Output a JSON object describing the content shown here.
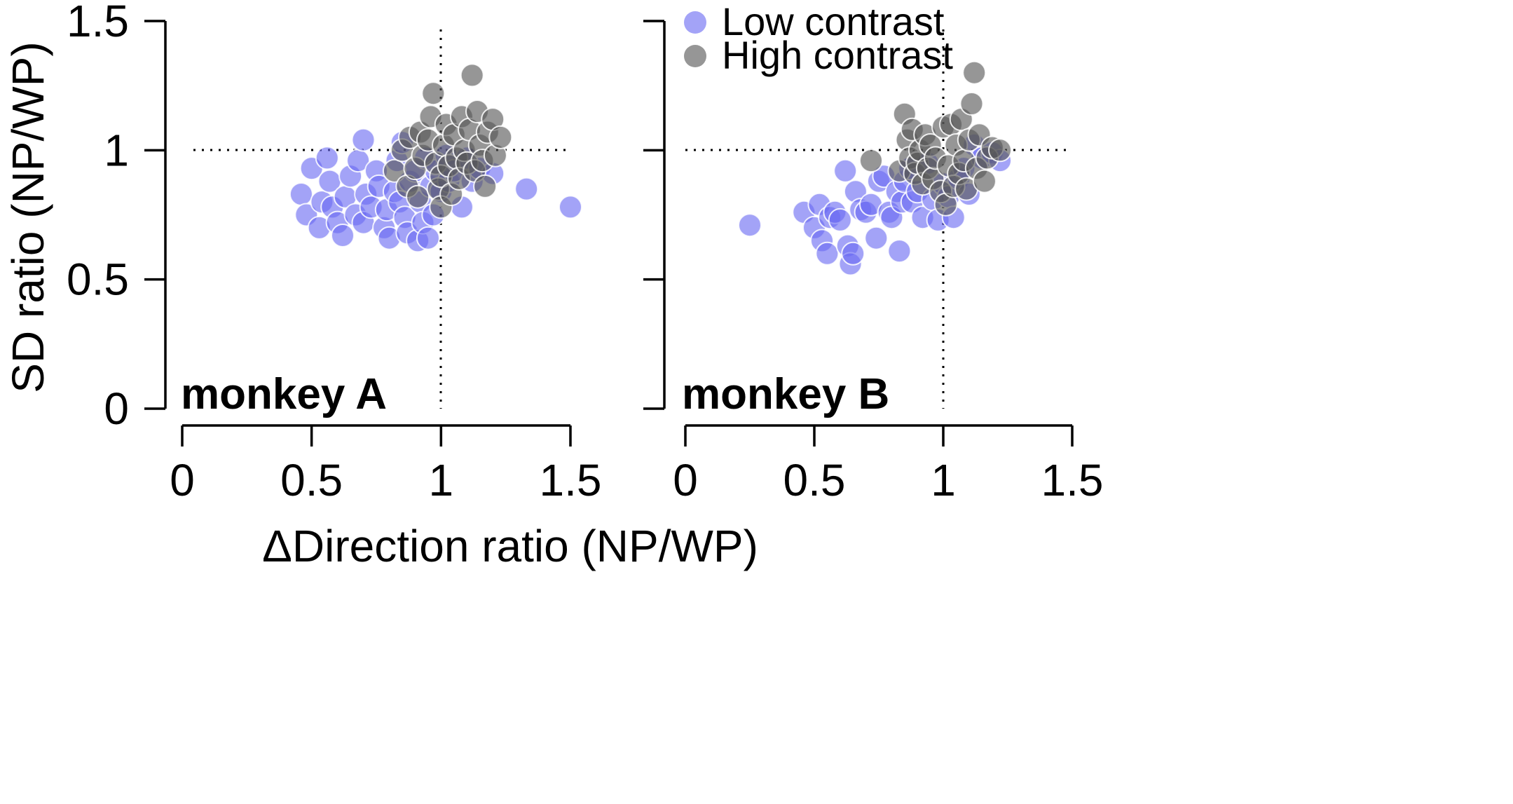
{
  "chart_data": {
    "type": "scatter",
    "xlabel": "ΔDirection ratio (NP/WP)",
    "ylabel": "SD ratio (NP/WP)",
    "xlim": [
      0,
      1.5
    ],
    "ylim": [
      0,
      1.5
    ],
    "xticks": [
      "0",
      "0.5",
      "1",
      "1.5"
    ],
    "yticks": [
      "0",
      "0.5",
      "1",
      "1.5"
    ],
    "reference_lines": {
      "x": 1,
      "y": 1
    },
    "legend": {
      "placement": "top of right panel",
      "entries": [
        {
          "label": "Low contrast",
          "color": "#6b6bf2"
        },
        {
          "label": "High contrast",
          "color": "#555555"
        }
      ]
    },
    "panels": [
      {
        "label": "monkey A",
        "series": [
          {
            "name": "Low contrast",
            "color": "#6b6bf2",
            "points": [
              [
                0.46,
                0.83
              ],
              [
                0.48,
                0.75
              ],
              [
                0.5,
                0.93
              ],
              [
                0.53,
                0.7
              ],
              [
                0.54,
                0.8
              ],
              [
                0.56,
                0.97
              ],
              [
                0.57,
                0.88
              ],
              [
                0.58,
                0.78
              ],
              [
                0.6,
                0.72
              ],
              [
                0.62,
                0.67
              ],
              [
                0.63,
                0.82
              ],
              [
                0.65,
                0.9
              ],
              [
                0.67,
                0.75
              ],
              [
                0.68,
                0.96
              ],
              [
                0.7,
                1.04
              ],
              [
                0.7,
                0.72
              ],
              [
                0.71,
                0.83
              ],
              [
                0.73,
                0.78
              ],
              [
                0.75,
                0.92
              ],
              [
                0.76,
                0.86
              ],
              [
                0.78,
                0.7
              ],
              [
                0.79,
                0.77
              ],
              [
                0.8,
                0.66
              ],
              [
                0.82,
                0.84
              ],
              [
                0.83,
                0.96
              ],
              [
                0.84,
                0.8
              ],
              [
                0.85,
                1.03
              ],
              [
                0.86,
                0.74
              ],
              [
                0.87,
                0.68
              ],
              [
                0.88,
                0.88
              ],
              [
                0.9,
                0.92
              ],
              [
                0.91,
                0.65
              ],
              [
                0.92,
                0.8
              ],
              [
                0.93,
                0.72
              ],
              [
                0.94,
                0.97
              ],
              [
                0.95,
                0.66
              ],
              [
                0.96,
                0.86
              ],
              [
                0.97,
                0.75
              ],
              [
                0.98,
                0.92
              ],
              [
                1.0,
                0.84
              ],
              [
                1.02,
                0.98
              ],
              [
                1.03,
                0.88
              ],
              [
                1.05,
                0.92
              ],
              [
                1.08,
                0.78
              ],
              [
                1.1,
                0.97
              ],
              [
                1.12,
                0.88
              ],
              [
                1.15,
                0.93
              ],
              [
                1.2,
                0.91
              ],
              [
                1.33,
                0.85
              ],
              [
                1.5,
                0.78
              ]
            ]
          },
          {
            "name": "High contrast",
            "color": "#555555",
            "points": [
              [
                0.82,
                0.92
              ],
              [
                0.85,
                1.0
              ],
              [
                0.87,
                0.86
              ],
              [
                0.88,
                1.05
              ],
              [
                0.9,
                0.93
              ],
              [
                0.91,
                0.82
              ],
              [
                0.92,
                1.07
              ],
              [
                0.93,
                0.98
              ],
              [
                0.95,
                1.04
              ],
              [
                0.96,
                1.13
              ],
              [
                0.97,
                1.22
              ],
              [
                0.98,
                0.95
              ],
              [
                0.99,
                0.85
              ],
              [
                1.0,
                0.78
              ],
              [
                1.0,
                0.9
              ],
              [
                1.01,
                1.02
              ],
              [
                1.02,
                1.1
              ],
              [
                1.03,
                0.94
              ],
              [
                1.04,
                0.83
              ],
              [
                1.05,
                1.06
              ],
              [
                1.06,
                0.97
              ],
              [
                1.07,
                0.89
              ],
              [
                1.08,
                1.13
              ],
              [
                1.09,
                1.0
              ],
              [
                1.1,
                0.95
              ],
              [
                1.11,
                1.08
              ],
              [
                1.12,
                1.29
              ],
              [
                1.13,
                0.92
              ],
              [
                1.14,
                1.15
              ],
              [
                1.15,
                1.02
              ],
              [
                1.16,
                0.96
              ],
              [
                1.17,
                0.86
              ],
              [
                1.18,
                1.07
              ],
              [
                1.2,
                1.12
              ],
              [
                1.21,
                0.98
              ],
              [
                1.23,
                1.05
              ]
            ]
          }
        ]
      },
      {
        "label": "monkey B",
        "series": [
          {
            "name": "Low contrast",
            "color": "#6b6bf2",
            "points": [
              [
                0.25,
                0.71
              ],
              [
                0.46,
                0.76
              ],
              [
                0.5,
                0.7
              ],
              [
                0.52,
                0.79
              ],
              [
                0.53,
                0.65
              ],
              [
                0.55,
                0.6
              ],
              [
                0.56,
                0.74
              ],
              [
                0.58,
                0.76
              ],
              [
                0.6,
                0.73
              ],
              [
                0.62,
                0.92
              ],
              [
                0.63,
                0.63
              ],
              [
                0.64,
                0.56
              ],
              [
                0.65,
                0.6
              ],
              [
                0.66,
                0.84
              ],
              [
                0.68,
                0.77
              ],
              [
                0.7,
                0.76
              ],
              [
                0.72,
                0.79
              ],
              [
                0.74,
                0.66
              ],
              [
                0.75,
                0.88
              ],
              [
                0.77,
                0.9
              ],
              [
                0.79,
                0.76
              ],
              [
                0.8,
                0.74
              ],
              [
                0.82,
                0.84
              ],
              [
                0.83,
                0.61
              ],
              [
                0.84,
                0.8
              ],
              [
                0.85,
                0.88
              ],
              [
                0.87,
                0.93
              ],
              [
                0.88,
                0.8
              ],
              [
                0.9,
                0.84
              ],
              [
                0.92,
                0.74
              ],
              [
                0.94,
                0.95
              ],
              [
                0.96,
                0.81
              ],
              [
                0.98,
                0.73
              ],
              [
                1.0,
                0.87
              ],
              [
                1.02,
                0.82
              ],
              [
                1.04,
                0.74
              ],
              [
                1.06,
                0.89
              ],
              [
                1.08,
                0.93
              ],
              [
                1.1,
                0.83
              ],
              [
                1.12,
                1.02
              ],
              [
                1.15,
                0.97
              ],
              [
                1.19,
                0.99
              ],
              [
                1.22,
                0.96
              ]
            ]
          },
          {
            "name": "High contrast",
            "color": "#555555",
            "points": [
              [
                0.72,
                0.96
              ],
              [
                0.83,
                0.92
              ],
              [
                0.85,
                1.14
              ],
              [
                0.86,
                1.04
              ],
              [
                0.87,
                0.97
              ],
              [
                0.88,
                1.08
              ],
              [
                0.89,
                0.91
              ],
              [
                0.9,
                0.95
              ],
              [
                0.91,
                1.0
              ],
              [
                0.92,
                0.87
              ],
              [
                0.93,
                1.06
              ],
              [
                0.94,
                0.93
              ],
              [
                0.95,
                1.02
              ],
              [
                0.96,
                0.89
              ],
              [
                0.97,
                0.97
              ],
              [
                0.99,
                0.84
              ],
              [
                1.0,
                1.09
              ],
              [
                1.01,
                0.79
              ],
              [
                1.02,
                0.94
              ],
              [
                1.03,
                1.1
              ],
              [
                1.04,
                0.86
              ],
              [
                1.05,
                1.02
              ],
              [
                1.06,
                0.91
              ],
              [
                1.07,
                1.12
              ],
              [
                1.08,
                0.96
              ],
              [
                1.09,
                0.85
              ],
              [
                1.1,
                1.04
              ],
              [
                1.11,
                1.18
              ],
              [
                1.12,
                1.3
              ],
              [
                1.13,
                0.93
              ],
              [
                1.14,
                1.06
              ],
              [
                1.16,
                0.88
              ],
              [
                1.17,
                0.97
              ],
              [
                1.19,
                1.01
              ],
              [
                1.22,
                1.0
              ]
            ]
          }
        ]
      }
    ]
  }
}
